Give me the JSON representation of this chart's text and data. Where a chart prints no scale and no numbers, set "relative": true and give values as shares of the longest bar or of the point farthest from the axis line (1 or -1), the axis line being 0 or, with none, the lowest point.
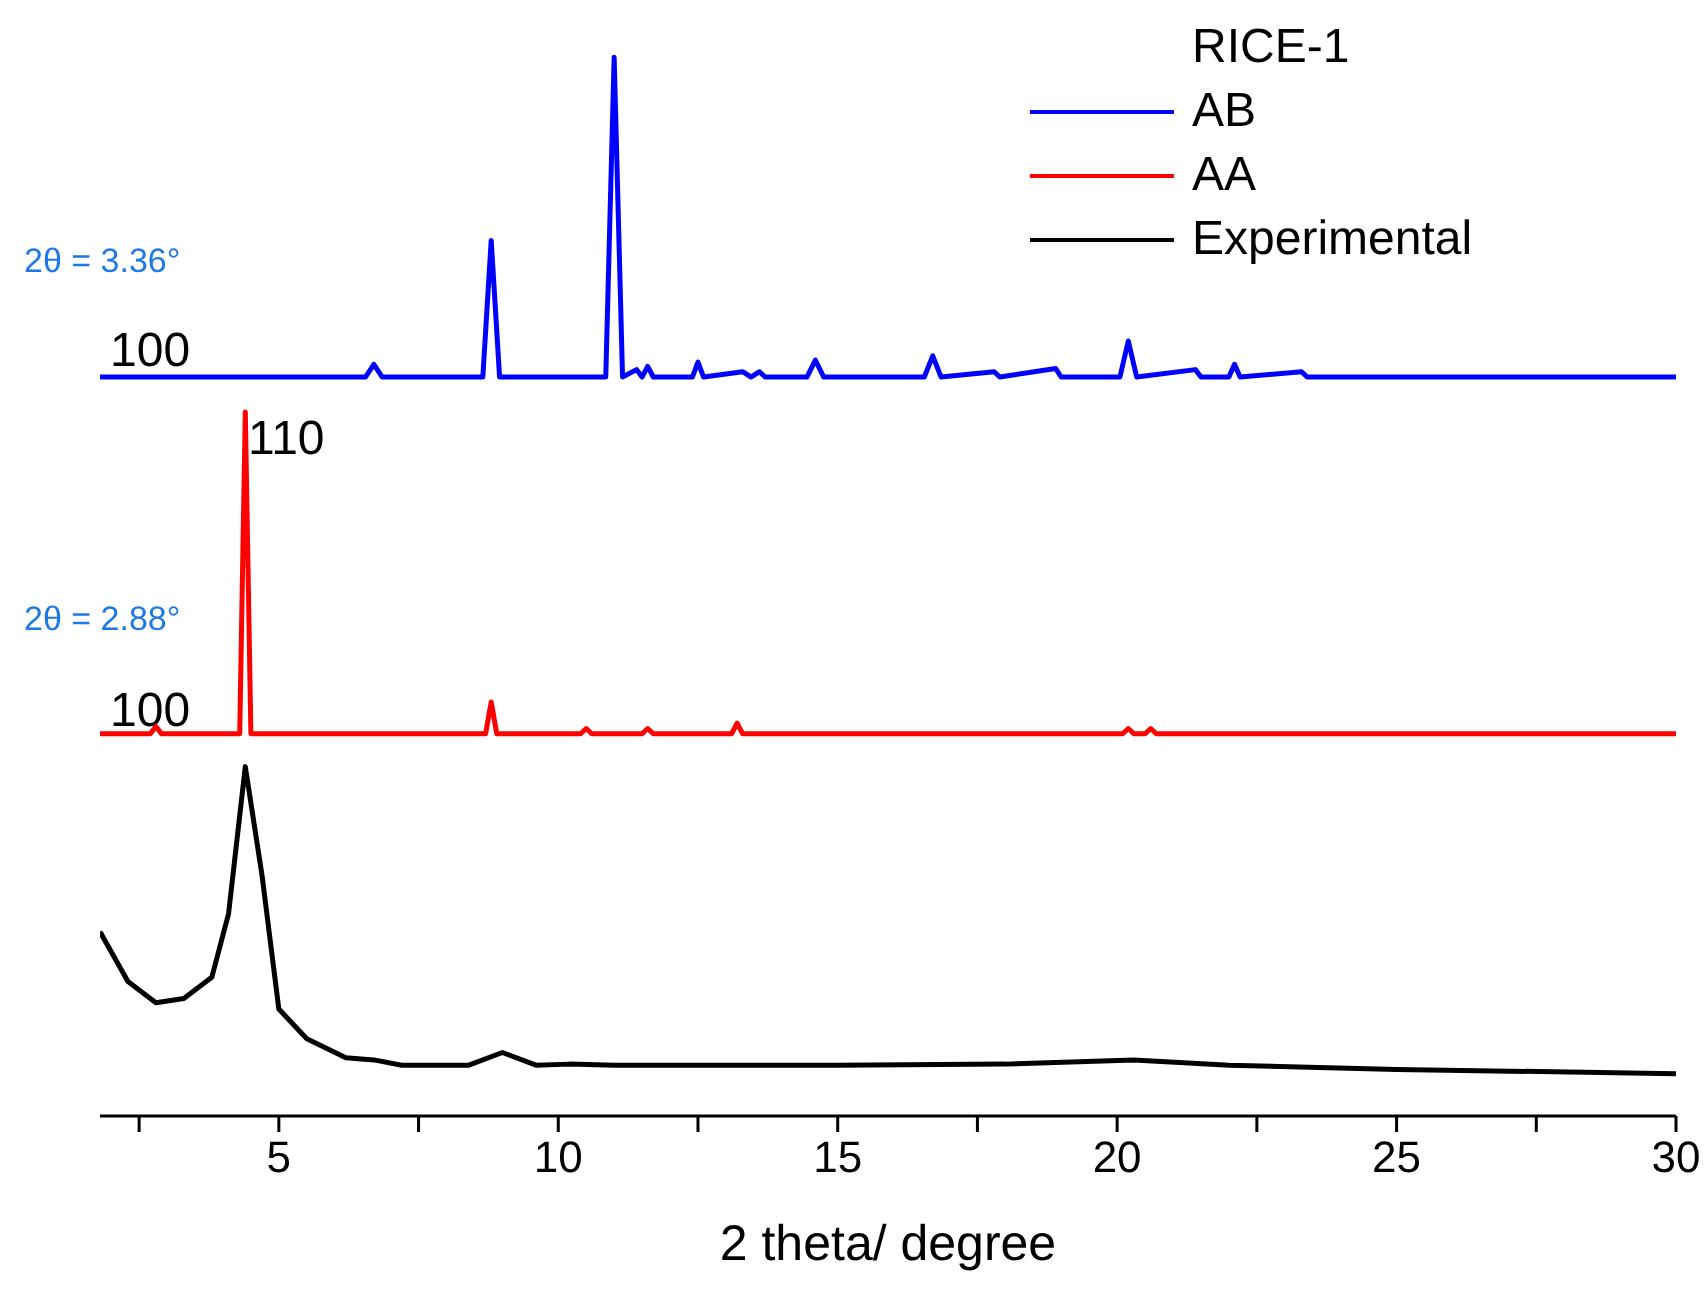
{
  "chart_data": {
    "type": "line",
    "relative": true,
    "xlabel": "2 theta/ degree",
    "legend_title": "RICE-1",
    "legend": "top right",
    "marker": "none",
    "line_style": "solid",
    "tick_labels": "x",
    "xlim": [
      1.8,
      30
    ],
    "xticks": [
      {
        "value": 2.5,
        "label": null
      },
      5,
      {
        "value": 7.5,
        "label": null
      },
      10,
      {
        "value": 12.5,
        "label": null
      },
      15,
      {
        "value": 17.5,
        "label": null
      },
      20,
      {
        "value": 22.5,
        "label": null
      },
      25,
      {
        "value": 27.5,
        "label": null
      },
      30
    ],
    "annotations": [
      "2θ = 3.36°",
      "100",
      "110",
      "2θ = 2.88°",
      "100"
    ],
    "series": [
      {
        "name": "AB",
        "color": "#0000ff",
        "x": [
          1.8,
          6.55,
          6.7,
          6.85,
          8.65,
          8.8,
          8.95,
          10.85,
          11.0,
          11.15,
          11.4,
          11.5,
          11.6,
          11.7,
          12.4,
          12.5,
          12.6,
          13.3,
          13.45,
          13.6,
          13.7,
          14.45,
          14.6,
          14.75,
          16.55,
          16.7,
          16.85,
          17.8,
          17.9,
          18.9,
          19.0,
          20.05,
          20.2,
          20.35,
          21.4,
          21.5,
          22.0,
          22.1,
          22.2,
          23.3,
          23.4,
          30
        ],
        "values": [
          0.698,
          0.698,
          0.71,
          0.698,
          0.698,
          0.827,
          0.698,
          0.698,
          1.0,
          0.698,
          0.705,
          0.698,
          0.708,
          0.698,
          0.698,
          0.712,
          0.698,
          0.703,
          0.698,
          0.703,
          0.698,
          0.698,
          0.714,
          0.698,
          0.698,
          0.718,
          0.698,
          0.703,
          0.698,
          0.706,
          0.698,
          0.698,
          0.732,
          0.698,
          0.705,
          0.698,
          0.698,
          0.71,
          0.698,
          0.703,
          0.698,
          0.698
        ]
      },
      {
        "name": "AA",
        "color": "#ff0000",
        "x": [
          1.8,
          2.7,
          2.8,
          2.9,
          4.3,
          4.4,
          4.5,
          8.7,
          8.8,
          8.9,
          10.4,
          10.5,
          10.6,
          11.5,
          11.6,
          11.7,
          13.1,
          13.2,
          13.3,
          20.1,
          20.2,
          20.3,
          20.5,
          20.6,
          20.7,
          30
        ],
        "values": [
          0.361,
          0.361,
          0.368,
          0.361,
          0.361,
          0.665,
          0.361,
          0.361,
          0.391,
          0.361,
          0.361,
          0.366,
          0.361,
          0.361,
          0.366,
          0.361,
          0.361,
          0.371,
          0.361,
          0.361,
          0.366,
          0.361,
          0.361,
          0.366,
          0.361,
          0.361
        ]
      },
      {
        "name": "Experimental",
        "color": "#000000",
        "x": [
          1.8,
          2.3,
          2.8,
          3.3,
          3.8,
          4.1,
          4.4,
          4.7,
          5.0,
          5.5,
          6.2,
          6.7,
          7.2,
          8.4,
          9.0,
          9.6,
          10.2,
          11,
          13,
          15,
          18,
          20.3,
          22,
          25,
          30
        ],
        "values": [
          0.174,
          0.127,
          0.107,
          0.111,
          0.131,
          0.191,
          0.33,
          0.227,
          0.101,
          0.073,
          0.055,
          0.053,
          0.048,
          0.048,
          0.06,
          0.048,
          0.049,
          0.048,
          0.048,
          0.048,
          0.049,
          0.053,
          0.048,
          0.044,
          0.04
        ]
      }
    ]
  }
}
